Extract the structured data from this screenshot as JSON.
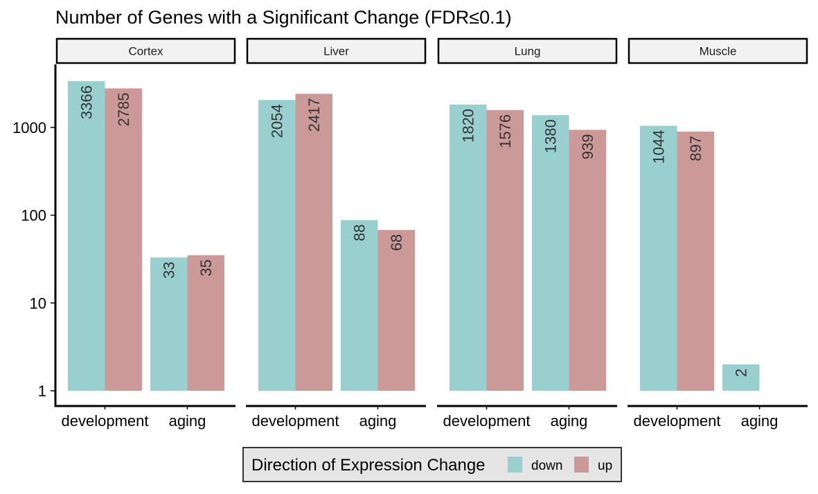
{
  "chart_data": {
    "type": "bar",
    "title": "Number of Genes with a Significant Change (FDR≤0.1)",
    "xlabel": "",
    "ylabel": "",
    "y_scale": "log10",
    "ylim": [
      1,
      5000
    ],
    "y_ticks": [
      1,
      10,
      100,
      1000
    ],
    "y_tick_labels": [
      "1",
      "10",
      "100",
      "1000"
    ],
    "grid": false,
    "categories": [
      "development",
      "aging"
    ],
    "facets": [
      "Cortex",
      "Liver",
      "Lung",
      "Muscle"
    ],
    "legend": {
      "title": "Direction of Expression Change",
      "position": "bottom",
      "entries": [
        "down",
        "up"
      ]
    },
    "colors": {
      "down": "#99cfcf",
      "up": "#cc9999"
    },
    "series": [
      {
        "name": "down",
        "values": {
          "Cortex": [
            3366,
            33
          ],
          "Liver": [
            2054,
            88
          ],
          "Lung": [
            1820,
            1380
          ],
          "Muscle": [
            1044,
            2
          ]
        }
      },
      {
        "name": "up",
        "values": {
          "Cortex": [
            2785,
            35
          ],
          "Liver": [
            2417,
            68
          ],
          "Lung": [
            1576,
            939
          ],
          "Muscle": [
            897,
            null
          ]
        }
      }
    ]
  }
}
